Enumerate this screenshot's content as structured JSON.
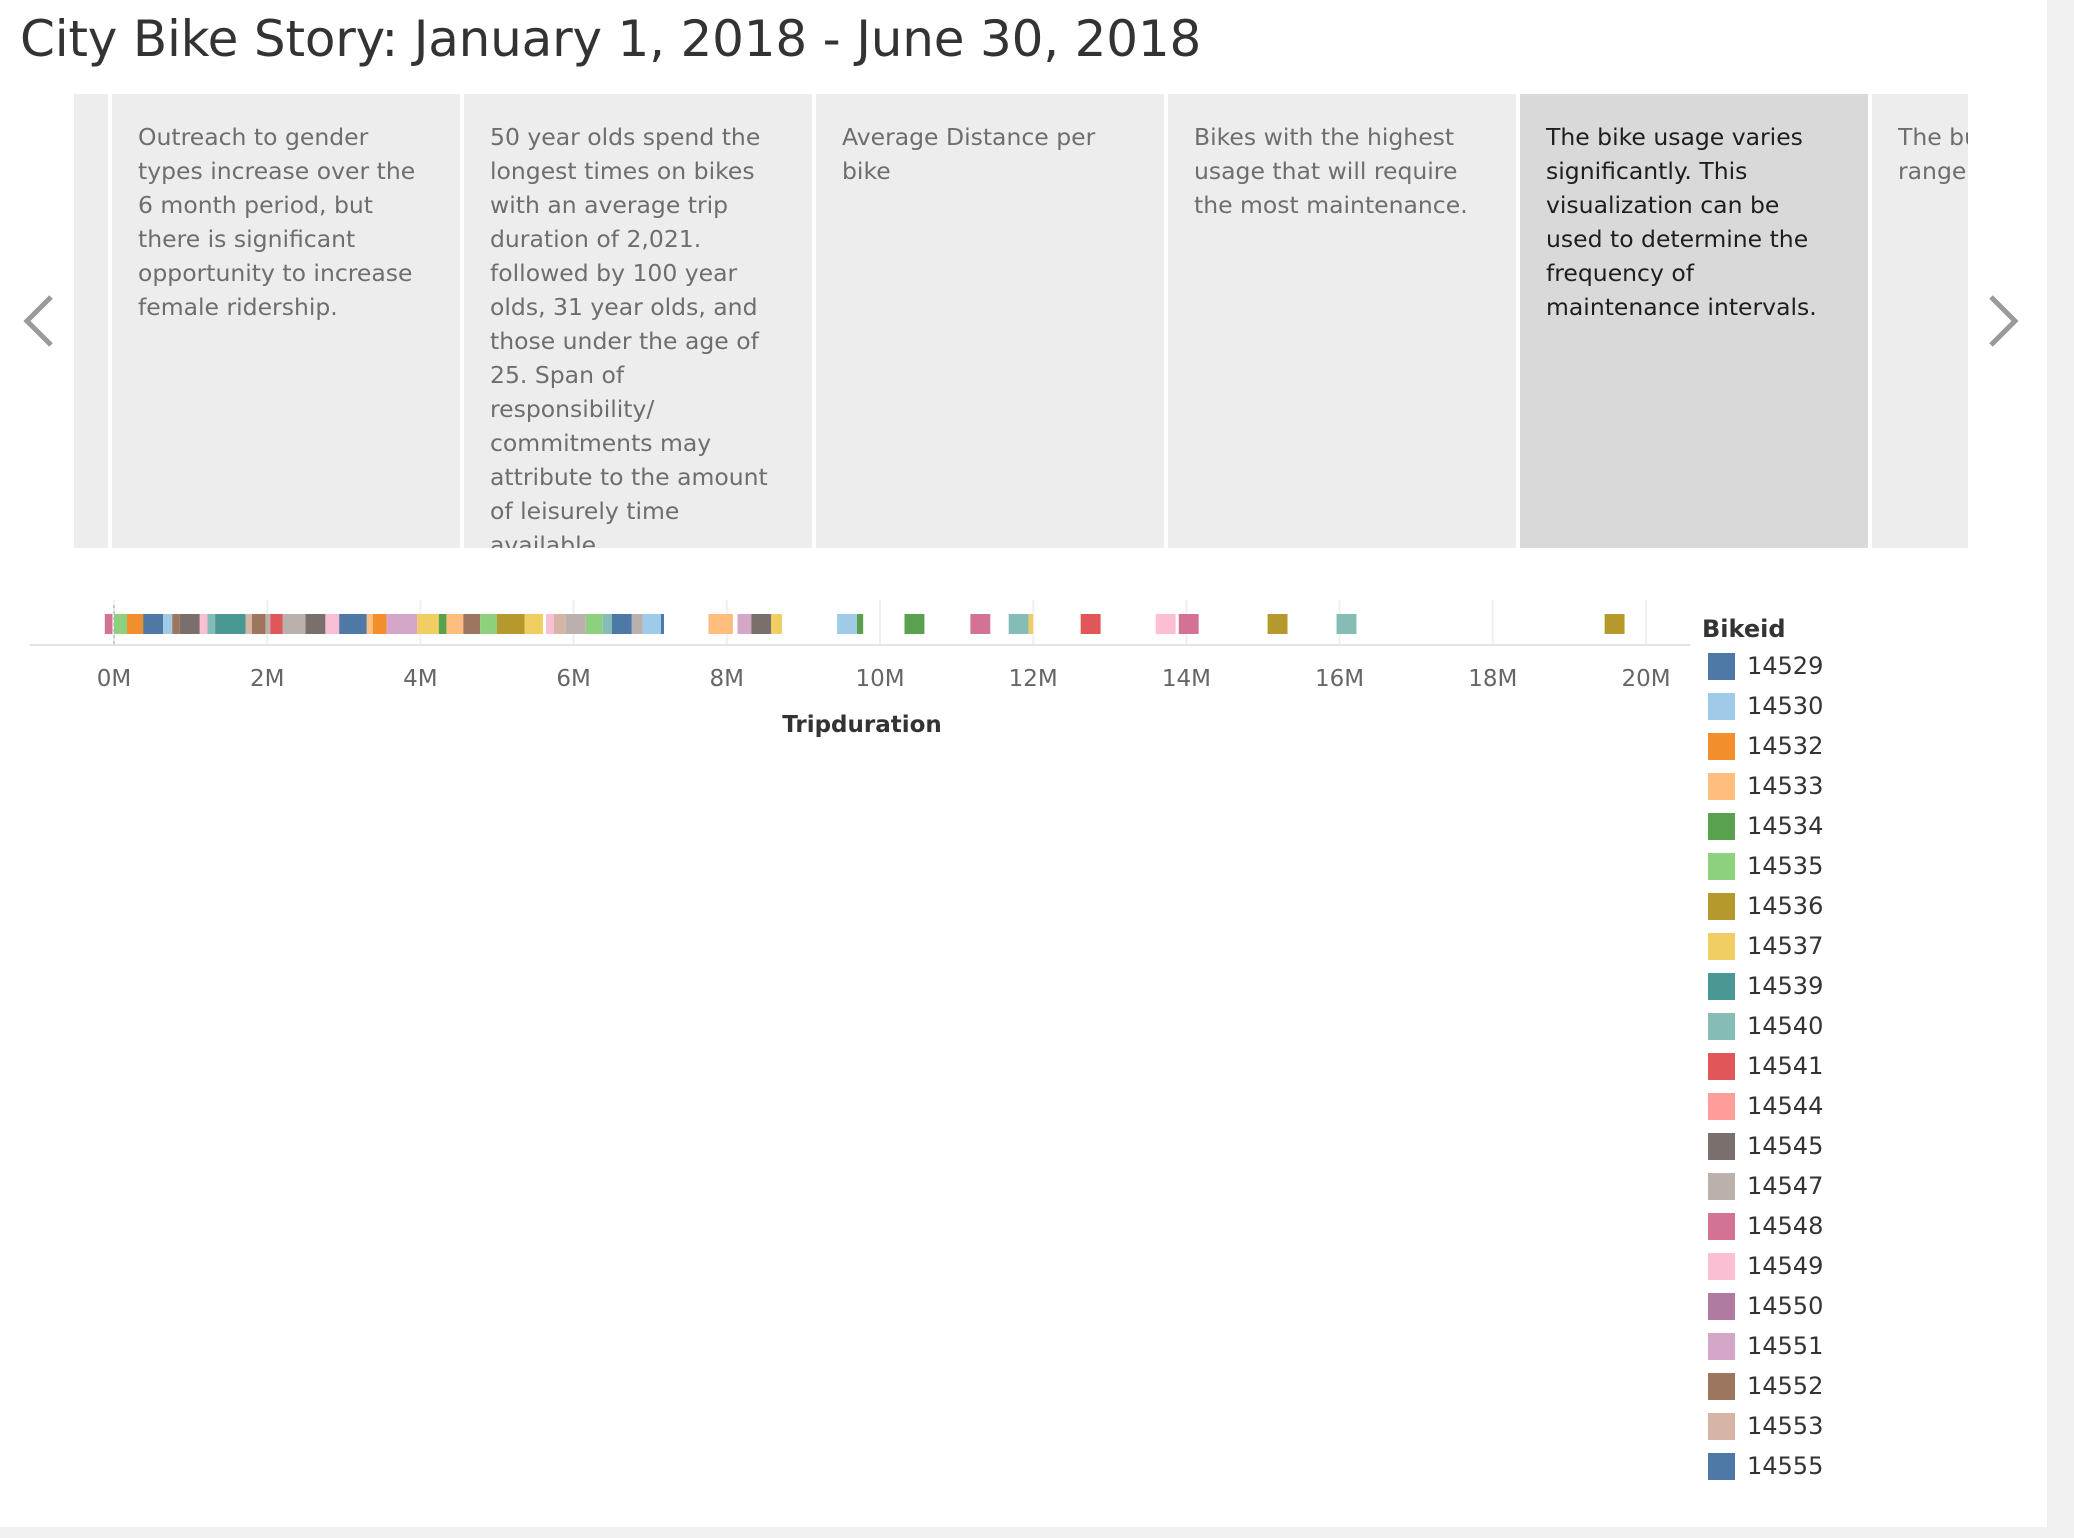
{
  "title": "City Bike Story: January 1, 2018 - June 30, 2018",
  "story_points": [
    {
      "caption": ""
    },
    {
      "caption": "Outreach to gender types increase over the 6 month period, but there is significant opportunity to increase female ridership."
    },
    {
      "caption": "50 year olds spend the longest times on bikes with an average trip duration of 2,021. followed by 100 year olds, 31 year olds, and those under the age of 25. Span of responsibility/ commitments may attribute to the amount of leisurely time available."
    },
    {
      "caption": "Average Distance per bike"
    },
    {
      "caption": "Bikes with the highest usage that will require the most maintenance."
    },
    {
      "caption": "The bike usage varies significantly. This visualization can be used to determine the frequency of maintenance intervals.",
      "active": true
    },
    {
      "caption": "The bu to pick in an a range years"
    }
  ],
  "nav": {
    "prev_icon": "chevron-left-icon",
    "next_icon": "chevron-right-icon"
  },
  "chart_data": {
    "type": "bar",
    "orientation": "horizontal-stacked",
    "xlabel": "Tripduration",
    "ylabel": "",
    "xlim": [
      -1.1,
      20.6
    ],
    "x_unit": "M",
    "x_ticks": [
      "0M",
      "2M",
      "4M",
      "6M",
      "8M",
      "10M",
      "12M",
      "14M",
      "16M",
      "18M",
      "20M"
    ],
    "grid": true,
    "legend_title": "Bikeid",
    "legend_position": "right",
    "series": [
      {
        "name": "14529",
        "color": "#4e79a7"
      },
      {
        "name": "14530",
        "color": "#a0cbe8"
      },
      {
        "name": "14532",
        "color": "#f28e2b"
      },
      {
        "name": "14533",
        "color": "#ffbe7d"
      },
      {
        "name": "14534",
        "color": "#59a14f"
      },
      {
        "name": "14535",
        "color": "#8cd17d"
      },
      {
        "name": "14536",
        "color": "#b6992d"
      },
      {
        "name": "14537",
        "color": "#f1ce63"
      },
      {
        "name": "14539",
        "color": "#499894"
      },
      {
        "name": "14540",
        "color": "#86bcb6"
      },
      {
        "name": "14541",
        "color": "#e15759"
      },
      {
        "name": "14544",
        "color": "#ff9d9a"
      },
      {
        "name": "14545",
        "color": "#79706e"
      },
      {
        "name": "14547",
        "color": "#bab0ac"
      },
      {
        "name": "14548",
        "color": "#d37295"
      },
      {
        "name": "14549",
        "color": "#fabfd2"
      },
      {
        "name": "14550",
        "color": "#b07aa1"
      },
      {
        "name": "14551",
        "color": "#d4a6c8"
      },
      {
        "name": "14552",
        "color": "#9d7660"
      },
      {
        "name": "14553",
        "color": "#d7b5a6"
      },
      {
        "name": "14555",
        "color": "#4e79a7"
      }
    ],
    "segments": [
      {
        "bikeid": "14548",
        "start": -0.12,
        "end": -0.02
      },
      {
        "bikeid": "14535",
        "start": 0.0,
        "end": 0.17
      },
      {
        "bikeid": "14532",
        "start": 0.17,
        "end": 0.38
      },
      {
        "bikeid": "14529",
        "start": 0.38,
        "end": 0.64
      },
      {
        "bikeid": "14530",
        "start": 0.64,
        "end": 0.76
      },
      {
        "bikeid": "14552",
        "start": 0.76,
        "end": 0.86
      },
      {
        "bikeid": "14545",
        "start": 0.86,
        "end": 1.12
      },
      {
        "bikeid": "14549",
        "start": 1.12,
        "end": 1.22
      },
      {
        "bikeid": "14540",
        "start": 1.22,
        "end": 1.32
      },
      {
        "bikeid": "14539",
        "start": 1.32,
        "end": 1.72
      },
      {
        "bikeid": "14553",
        "start": 1.72,
        "end": 1.8
      },
      {
        "bikeid": "14552",
        "start": 1.8,
        "end": 1.98
      },
      {
        "bikeid": "14547",
        "start": 1.98,
        "end": 2.04
      },
      {
        "bikeid": "14541",
        "start": 2.04,
        "end": 2.2
      },
      {
        "bikeid": "14547",
        "start": 2.2,
        "end": 2.5
      },
      {
        "bikeid": "14545",
        "start": 2.5,
        "end": 2.76
      },
      {
        "bikeid": "14549",
        "start": 2.76,
        "end": 2.94
      },
      {
        "bikeid": "14555",
        "start": 2.94,
        "end": 3.3
      },
      {
        "bikeid": "14533",
        "start": 3.3,
        "end": 3.38
      },
      {
        "bikeid": "14532",
        "start": 3.38,
        "end": 3.56
      },
      {
        "bikeid": "14551",
        "start": 3.56,
        "end": 3.96
      },
      {
        "bikeid": "14537",
        "start": 3.96,
        "end": 4.24
      },
      {
        "bikeid": "14534",
        "start": 4.24,
        "end": 4.34
      },
      {
        "bikeid": "14533",
        "start": 4.34,
        "end": 4.56
      },
      {
        "bikeid": "14552",
        "start": 4.56,
        "end": 4.78
      },
      {
        "bikeid": "14535",
        "start": 4.78,
        "end": 5.0
      },
      {
        "bikeid": "14536",
        "start": 5.0,
        "end": 5.36
      },
      {
        "bikeid": "14537",
        "start": 5.36,
        "end": 5.6
      },
      {
        "bikeid": "14549",
        "start": 5.64,
        "end": 5.74
      },
      {
        "bikeid": "14553",
        "start": 5.74,
        "end": 5.9
      },
      {
        "bikeid": "14547",
        "start": 5.9,
        "end": 6.16
      },
      {
        "bikeid": "14535",
        "start": 6.16,
        "end": 6.38
      },
      {
        "bikeid": "14540",
        "start": 6.38,
        "end": 6.5
      },
      {
        "bikeid": "14529",
        "start": 6.5,
        "end": 6.76
      },
      {
        "bikeid": "14547",
        "start": 6.76,
        "end": 6.9
      },
      {
        "bikeid": "14530",
        "start": 6.9,
        "end": 7.14
      },
      {
        "bikeid": "14529",
        "start": 7.14,
        "end": 7.18
      },
      {
        "bikeid": "14533",
        "start": 7.76,
        "end": 8.08
      },
      {
        "bikeid": "14551",
        "start": 8.14,
        "end": 8.32
      },
      {
        "bikeid": "14545",
        "start": 8.32,
        "end": 8.58
      },
      {
        "bikeid": "14537",
        "start": 8.58,
        "end": 8.72
      },
      {
        "bikeid": "14530",
        "start": 9.44,
        "end": 9.7
      },
      {
        "bikeid": "14534",
        "start": 9.7,
        "end": 9.78
      },
      {
        "bikeid": "14534",
        "start": 10.32,
        "end": 10.58
      },
      {
        "bikeid": "14548",
        "start": 11.18,
        "end": 11.44
      },
      {
        "bikeid": "14540",
        "start": 11.68,
        "end": 11.94
      },
      {
        "bikeid": "14537",
        "start": 11.94,
        "end": 12.0
      },
      {
        "bikeid": "14541",
        "start": 12.62,
        "end": 12.88
      },
      {
        "bikeid": "14549",
        "start": 13.6,
        "end": 13.86
      },
      {
        "bikeid": "14548",
        "start": 13.9,
        "end": 14.16
      },
      {
        "bikeid": "14536",
        "start": 15.06,
        "end": 15.32
      },
      {
        "bikeid": "14540",
        "start": 15.96,
        "end": 16.22
      },
      {
        "bikeid": "14536",
        "start": 19.46,
        "end": 19.72
      }
    ]
  }
}
